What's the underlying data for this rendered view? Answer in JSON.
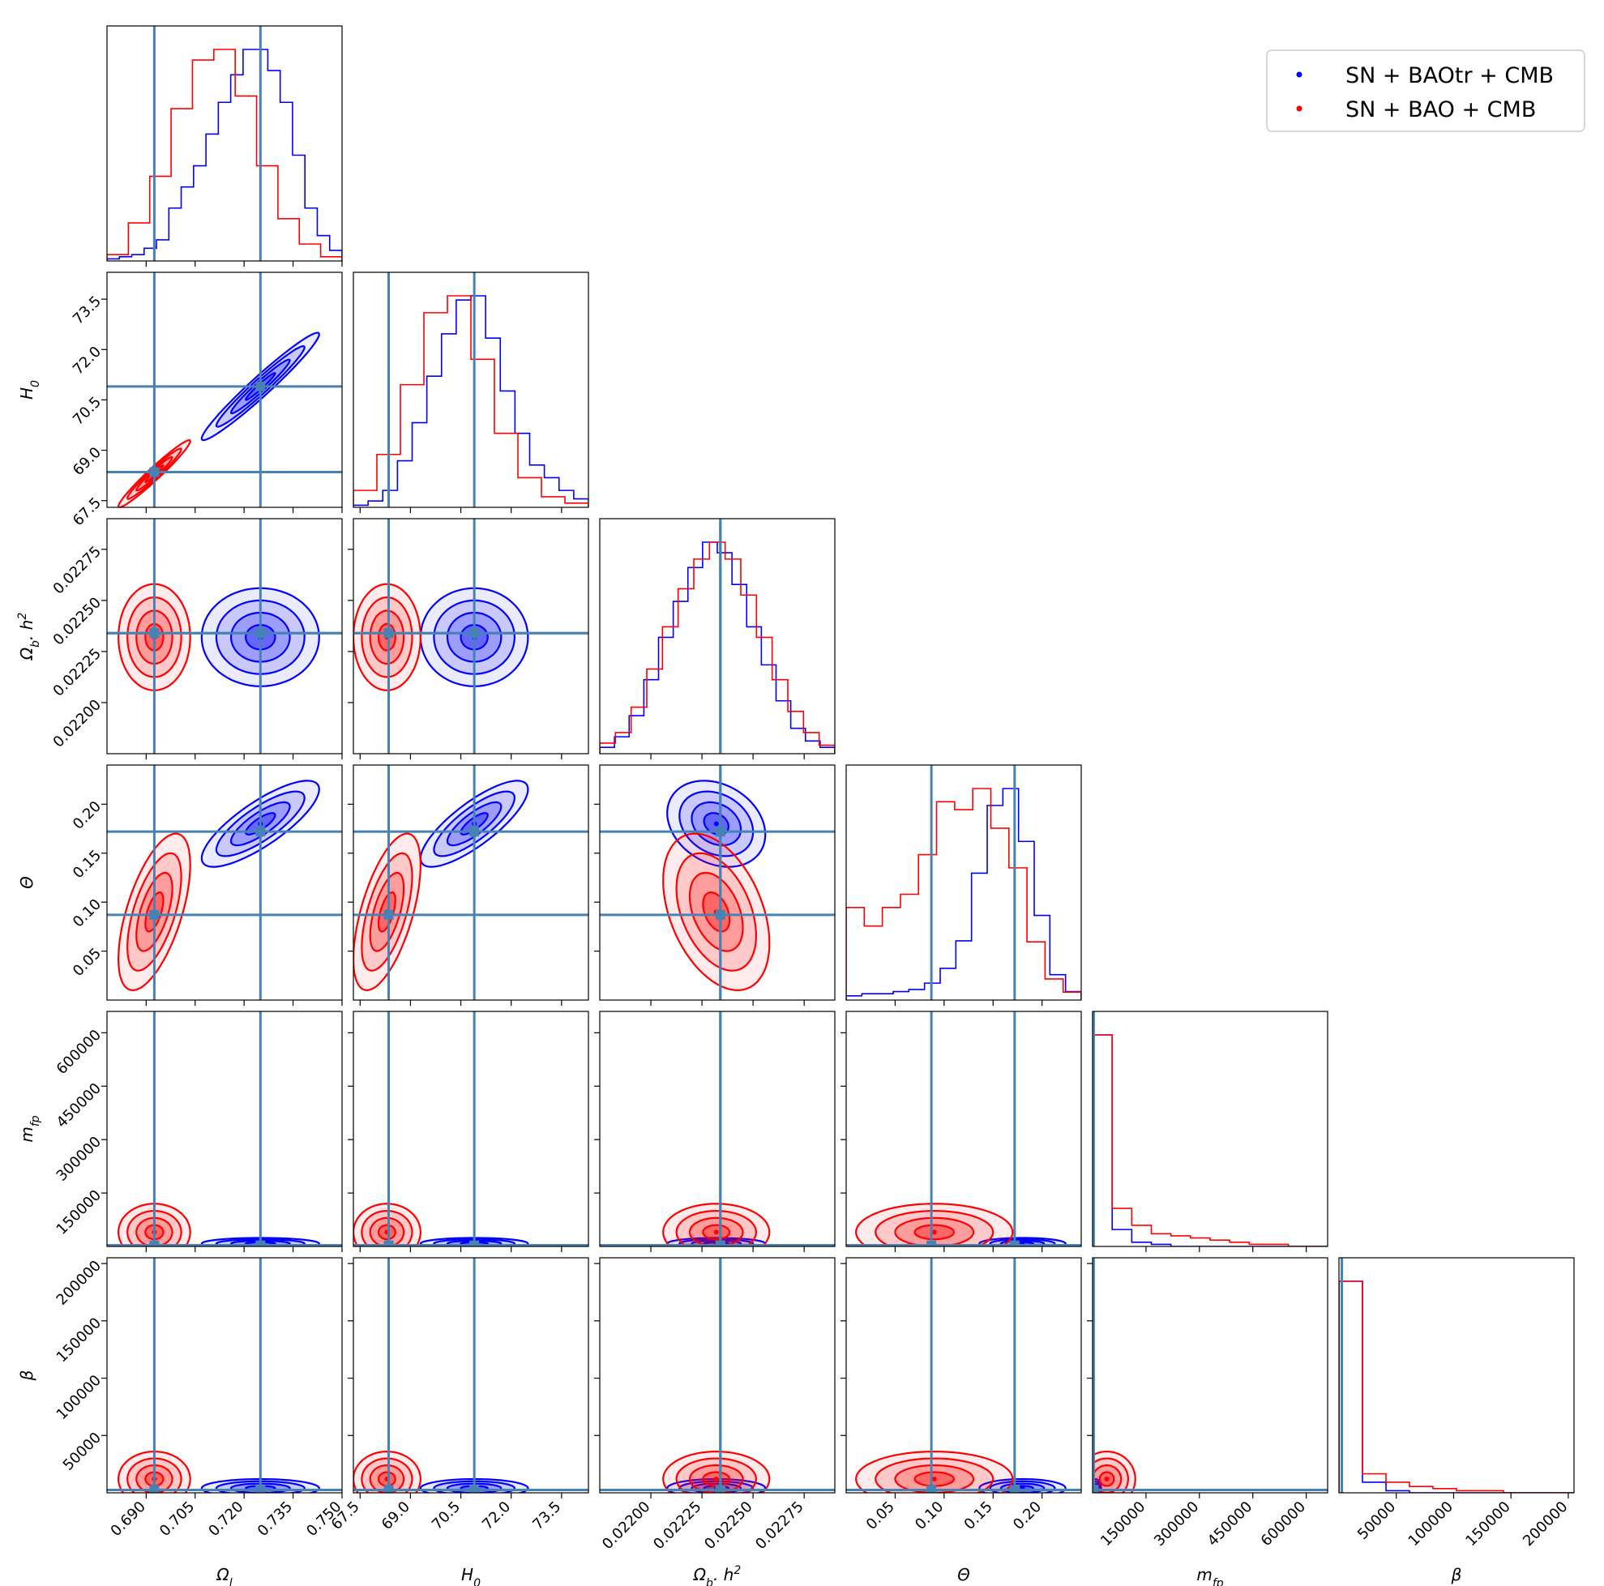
{
  "chart_data": {
    "type": "corner",
    "title": "",
    "parameters": [
      {
        "key": "omega_l",
        "label": "Ω",
        "label_sub": "l",
        "label_sup": "",
        "range": [
          0.678,
          0.75
        ],
        "ticks": [
          0.69,
          0.705,
          0.72,
          0.735,
          0.75
        ],
        "tick_labels": [
          "0.690",
          "0.705",
          "0.720",
          "0.735",
          "0.750"
        ]
      },
      {
        "key": "h0",
        "label": "H",
        "label_sub": "0",
        "label_sup": "",
        "range": [
          67.3,
          74.3
        ],
        "ticks": [
          67.5,
          69.0,
          70.5,
          72.0,
          73.5
        ],
        "tick_labels": [
          "67.5",
          "69.0",
          "70.5",
          "72.0",
          "73.5"
        ]
      },
      {
        "key": "omega_b_h2",
        "label": "Ω",
        "label_sub": "b",
        "label_suffix": ". h",
        "label_sup": "2",
        "range": [
          0.02175,
          0.0229
        ],
        "ticks": [
          0.022,
          0.02225,
          0.0225,
          0.02275
        ],
        "tick_labels": [
          "0.02200",
          "0.02225",
          "0.02250",
          "0.02275"
        ]
      },
      {
        "key": "theta",
        "label": "Θ",
        "label_sub": "",
        "label_sup": "",
        "range": [
          0.0,
          0.24
        ],
        "ticks": [
          0.05,
          0.1,
          0.15,
          0.2
        ],
        "tick_labels": [
          "0.05",
          "0.10",
          "0.15",
          "0.20"
        ]
      },
      {
        "key": "m_fp",
        "label": "m",
        "label_sub": "fp",
        "label_sup": "",
        "range": [
          0,
          660000
        ],
        "ticks": [
          150000,
          300000,
          450000,
          600000
        ],
        "tick_labels": [
          "150000",
          "300000",
          "450000",
          "600000"
        ]
      },
      {
        "key": "beta",
        "label": "β",
        "label_sub": "",
        "label_sup": "",
        "range": [
          0,
          205000
        ],
        "ticks": [
          50000,
          100000,
          150000,
          200000
        ],
        "tick_labels": [
          "50000",
          "100000",
          "150000",
          "200000"
        ]
      }
    ],
    "truths": {
      "blue": [
        0.725,
        70.9,
        0.02234,
        0.172,
        3000,
        2500
      ],
      "red": [
        0.6925,
        68.35,
        0.02234,
        0.087,
        3000,
        2500
      ]
    },
    "series": [
      {
        "name": "SN + BAOtr + CMB",
        "color": "#0000ff",
        "mean": [
          0.725,
          70.9,
          0.02232,
          0.18,
          8000,
          4000
        ],
        "sigma": [
          0.009,
          0.8,
          0.00012,
          0.022,
          8000,
          4000
        ],
        "correlations": {
          "0-1": 0.97,
          "0-2": 0.0,
          "1-2": 0.0,
          "0-3": 0.8,
          "1-3": 0.8,
          "2-3": -0.25
        },
        "hist": {
          "0": [
            1,
            2,
            3,
            6,
            10,
            25,
            35,
            45,
            60,
            75,
            88,
            100,
            100,
            90,
            75,
            50,
            25,
            12,
            5
          ],
          "1": [
            1,
            3,
            8,
            22,
            40,
            62,
            82,
            98,
            100,
            80,
            55,
            35,
            20,
            14,
            8,
            4
          ],
          "2": [
            3,
            8,
            18,
            35,
            55,
            72,
            88,
            100,
            95,
            80,
            60,
            42,
            25,
            12,
            6,
            3
          ],
          "3": [
            2,
            3,
            3,
            4,
            5,
            8,
            15,
            28,
            60,
            92,
            100,
            75,
            40,
            12,
            4
          ],
          "4": [
            100,
            8,
            2,
            1,
            0,
            0,
            0,
            0,
            0,
            0,
            0,
            0
          ],
          "5": [
            100,
            5,
            1,
            0,
            0,
            0,
            0,
            0,
            0,
            0
          ]
        }
      },
      {
        "name": "SN + BAO + CMB",
        "color": "#ff0000",
        "mean": [
          0.6925,
          68.3,
          0.02232,
          0.09,
          40000,
          12000
        ],
        "sigma": [
          0.0055,
          0.5,
          0.00013,
          0.04,
          40000,
          12000
        ],
        "correlations": {
          "0-1": 0.97,
          "0-2": 0.0,
          "1-2": 0.0,
          "0-3": 0.6,
          "1-3": 0.6,
          "2-3": -0.4
        },
        "hist": {
          "0": [
            3,
            18,
            40,
            72,
            95,
            100,
            78,
            45,
            20,
            8,
            2
          ],
          "1": [
            8,
            25,
            58,
            92,
            100,
            70,
            35,
            14,
            5,
            2
          ],
          "2": [
            5,
            10,
            22,
            40,
            60,
            78,
            92,
            100,
            92,
            75,
            55,
            35,
            20,
            10,
            4
          ],
          "3": [
            35,
            28,
            35,
            40,
            55,
            75,
            72,
            80,
            65,
            50,
            22,
            8,
            3
          ],
          "4": [
            100,
            18,
            10,
            6,
            5,
            4,
            3,
            2,
            1,
            1,
            0,
            0
          ],
          "5": [
            100,
            9,
            5,
            3,
            2,
            1,
            1,
            0,
            0,
            0
          ]
        }
      }
    ],
    "legend": {
      "position": "top-right",
      "entries": [
        "SN + BAOtr + CMB",
        "SN + BAO + CMB"
      ]
    }
  },
  "colors": {
    "truth": "#4682b4",
    "blue": "#0000ff",
    "red": "#ff0000"
  }
}
